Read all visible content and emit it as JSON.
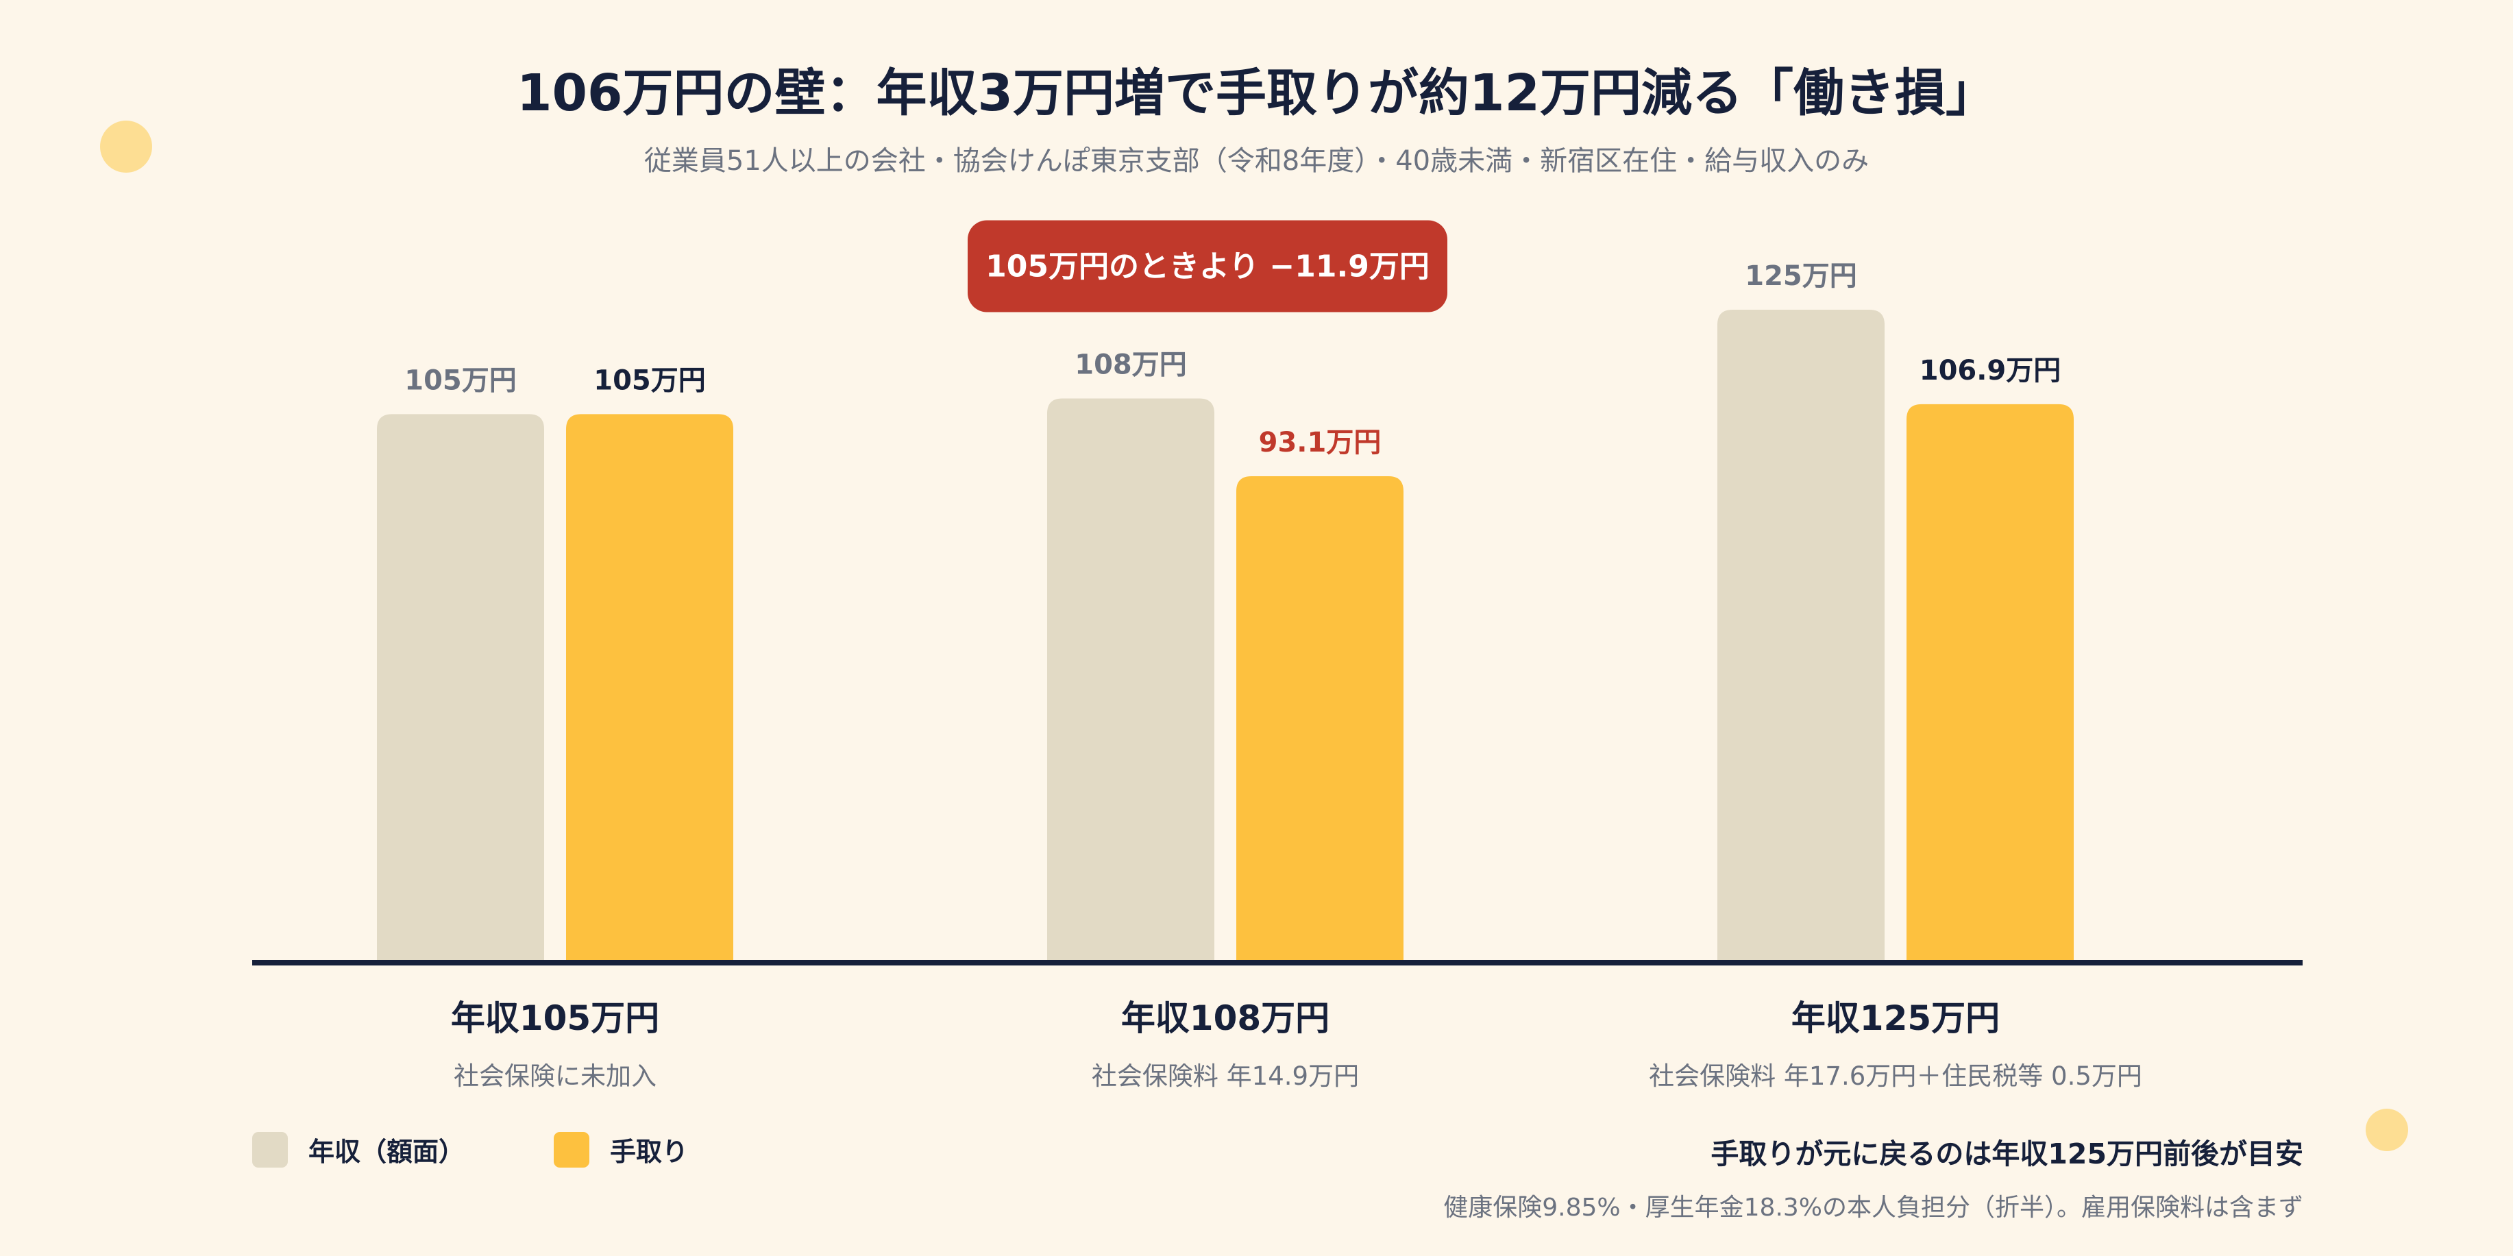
{
  "colors": {
    "background": "#fdf6ea",
    "gross_bar": "#e2dac5",
    "net_bar": "#fdc13f",
    "axis": "#16203a",
    "text_dark": "#16203a",
    "text_muted": "#6b7280",
    "loss_red": "#c0392b",
    "decor_dot": "#fddc8a"
  },
  "chart_data": {
    "type": "bar",
    "title": "106万円の壁：年収3万円増で手取りが約12万円減る「働き損」",
    "subtitle": "従業員51人以上の会社・協会けんぽ東京支部（令和8年度）・40歳未満・新宿区在住・給与収入のみ",
    "categories": [
      "年収105万円",
      "年収108万円",
      "年収125万円"
    ],
    "category_notes": [
      "社会保険に未加入",
      "社会保険料 年14.9万円",
      "社会保険料 年17.6万円＋住民税等 0.5万円"
    ],
    "series": [
      {
        "name": "年収（額面）",
        "values": [
          105,
          108,
          125
        ],
        "value_labels": [
          "105万円",
          "108万円",
          "125万円"
        ]
      },
      {
        "name": "手取り",
        "values": [
          105,
          93.1,
          106.9
        ],
        "value_labels": [
          "105万円",
          "93.1万円",
          "106.9万円"
        ]
      }
    ],
    "ylim": [
      0,
      125
    ],
    "grid": false,
    "legend_position": "bottom-left",
    "annotation": {
      "text": "105万円のときより −11.9万円",
      "category_index": 1
    },
    "highlight": {
      "category_index": 1,
      "series_index": 1,
      "color": "#c0392b"
    }
  },
  "legend": {
    "items": [
      {
        "label": "年収（額面）",
        "color": "#e2dac5"
      },
      {
        "label": "手取り",
        "color": "#fdc13f"
      }
    ]
  },
  "notes": {
    "main": "手取りが元に戻るのは年収125万円前後が目安",
    "sub": "健康保険9.85%・厚生年金18.3%の本人負担分（折半）。雇用保険料は含まず"
  }
}
